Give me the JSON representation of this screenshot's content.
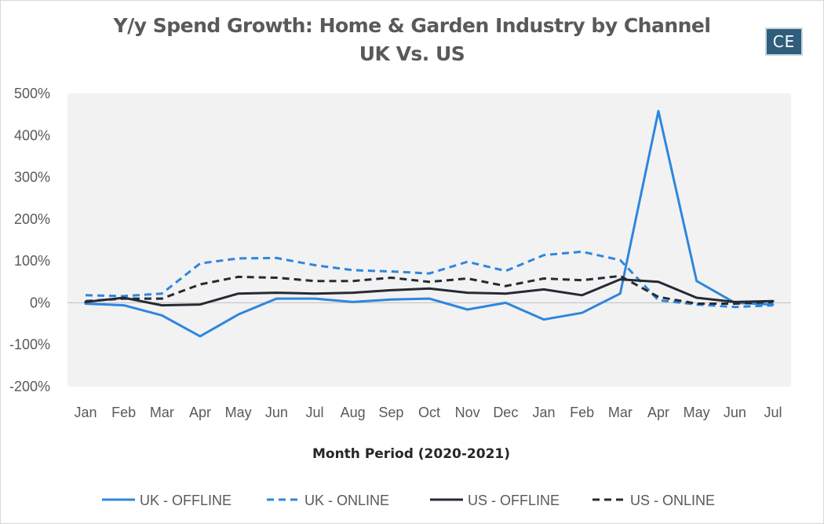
{
  "header": {
    "title_line1": "Y/y Spend Growth: Home & Garden Industry by Channel",
    "title_line2": "UK Vs. US",
    "logo_text": "CE"
  },
  "chart_data": {
    "type": "line",
    "title": "Y/y Spend Growth: Home & Garden Industry by Channel UK Vs. US",
    "xlabel": "Month Period (2020-2021)",
    "ylabel": "",
    "categories": [
      "Jan",
      "Feb",
      "Mar",
      "Apr",
      "May",
      "Jun",
      "Jul",
      "Aug",
      "Sep",
      "Oct",
      "Nov",
      "Dec",
      "Jan",
      "Feb",
      "Mar",
      "Apr",
      "May",
      "Jun",
      "Jul"
    ],
    "ylim": [
      -200,
      500
    ],
    "yticks": [
      -200,
      -100,
      0,
      100,
      200,
      300,
      400,
      500
    ],
    "ytick_labels": [
      "-200%",
      "-100%",
      "0%",
      "100%",
      "200%",
      "300%",
      "400%",
      "500%"
    ],
    "grid": false,
    "legend_position": "bottom",
    "series": [
      {
        "name": "UK - OFFLINE",
        "color": "#2e86de",
        "dash": "solid",
        "values": [
          -2,
          -6,
          -30,
          -80,
          -28,
          10,
          10,
          2,
          8,
          10,
          -16,
          0,
          -40,
          -24,
          22,
          458,
          52,
          0,
          -4
        ]
      },
      {
        "name": "UK - ONLINE",
        "color": "#2e86de",
        "dash": "dashed",
        "values": [
          18,
          16,
          22,
          94,
          106,
          107,
          90,
          78,
          75,
          70,
          98,
          76,
          114,
          122,
          102,
          6,
          -4,
          -10,
          -6
        ]
      },
      {
        "name": "US - OFFLINE",
        "color": "#262a33",
        "dash": "solid",
        "values": [
          2,
          12,
          -6,
          -4,
          22,
          24,
          22,
          24,
          30,
          34,
          24,
          22,
          32,
          18,
          56,
          50,
          12,
          2,
          4
        ]
      },
      {
        "name": "US - ONLINE",
        "color": "#262a33",
        "dash": "dashed",
        "values": [
          4,
          10,
          10,
          44,
          62,
          60,
          52,
          52,
          60,
          50,
          58,
          40,
          58,
          54,
          64,
          14,
          -2,
          -2,
          2
        ]
      }
    ]
  }
}
